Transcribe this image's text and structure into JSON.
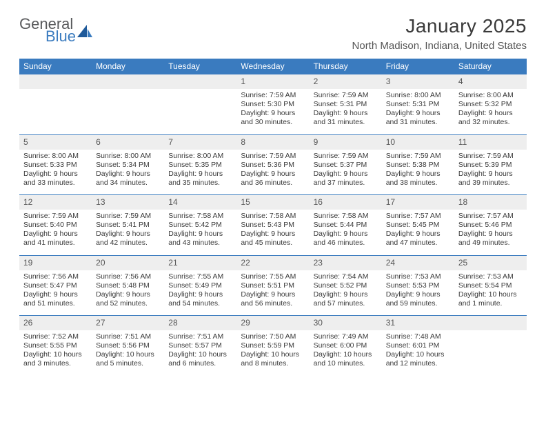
{
  "brand": {
    "part1": "General",
    "part2": "Blue"
  },
  "title": "January 2025",
  "location": "North Madison, Indiana, United States",
  "colors": {
    "header_bg": "#3a7bbf",
    "header_fg": "#ffffff",
    "daynum_bg": "#eeeeee",
    "rule": "#3a7bbf",
    "text": "#3a3a3a",
    "brand_gray": "#58595b",
    "brand_blue": "#3a7bbf"
  },
  "dow": [
    "Sunday",
    "Monday",
    "Tuesday",
    "Wednesday",
    "Thursday",
    "Friday",
    "Saturday"
  ],
  "weeks": [
    [
      null,
      null,
      null,
      {
        "n": "1",
        "t": "Sunrise: 7:59 AM\nSunset: 5:30 PM\nDaylight: 9 hours and 30 minutes."
      },
      {
        "n": "2",
        "t": "Sunrise: 7:59 AM\nSunset: 5:31 PM\nDaylight: 9 hours and 31 minutes."
      },
      {
        "n": "3",
        "t": "Sunrise: 8:00 AM\nSunset: 5:31 PM\nDaylight: 9 hours and 31 minutes."
      },
      {
        "n": "4",
        "t": "Sunrise: 8:00 AM\nSunset: 5:32 PM\nDaylight: 9 hours and 32 minutes."
      }
    ],
    [
      {
        "n": "5",
        "t": "Sunrise: 8:00 AM\nSunset: 5:33 PM\nDaylight: 9 hours and 33 minutes."
      },
      {
        "n": "6",
        "t": "Sunrise: 8:00 AM\nSunset: 5:34 PM\nDaylight: 9 hours and 34 minutes."
      },
      {
        "n": "7",
        "t": "Sunrise: 8:00 AM\nSunset: 5:35 PM\nDaylight: 9 hours and 35 minutes."
      },
      {
        "n": "8",
        "t": "Sunrise: 7:59 AM\nSunset: 5:36 PM\nDaylight: 9 hours and 36 minutes."
      },
      {
        "n": "9",
        "t": "Sunrise: 7:59 AM\nSunset: 5:37 PM\nDaylight: 9 hours and 37 minutes."
      },
      {
        "n": "10",
        "t": "Sunrise: 7:59 AM\nSunset: 5:38 PM\nDaylight: 9 hours and 38 minutes."
      },
      {
        "n": "11",
        "t": "Sunrise: 7:59 AM\nSunset: 5:39 PM\nDaylight: 9 hours and 39 minutes."
      }
    ],
    [
      {
        "n": "12",
        "t": "Sunrise: 7:59 AM\nSunset: 5:40 PM\nDaylight: 9 hours and 41 minutes."
      },
      {
        "n": "13",
        "t": "Sunrise: 7:59 AM\nSunset: 5:41 PM\nDaylight: 9 hours and 42 minutes."
      },
      {
        "n": "14",
        "t": "Sunrise: 7:58 AM\nSunset: 5:42 PM\nDaylight: 9 hours and 43 minutes."
      },
      {
        "n": "15",
        "t": "Sunrise: 7:58 AM\nSunset: 5:43 PM\nDaylight: 9 hours and 45 minutes."
      },
      {
        "n": "16",
        "t": "Sunrise: 7:58 AM\nSunset: 5:44 PM\nDaylight: 9 hours and 46 minutes."
      },
      {
        "n": "17",
        "t": "Sunrise: 7:57 AM\nSunset: 5:45 PM\nDaylight: 9 hours and 47 minutes."
      },
      {
        "n": "18",
        "t": "Sunrise: 7:57 AM\nSunset: 5:46 PM\nDaylight: 9 hours and 49 minutes."
      }
    ],
    [
      {
        "n": "19",
        "t": "Sunrise: 7:56 AM\nSunset: 5:47 PM\nDaylight: 9 hours and 51 minutes."
      },
      {
        "n": "20",
        "t": "Sunrise: 7:56 AM\nSunset: 5:48 PM\nDaylight: 9 hours and 52 minutes."
      },
      {
        "n": "21",
        "t": "Sunrise: 7:55 AM\nSunset: 5:49 PM\nDaylight: 9 hours and 54 minutes."
      },
      {
        "n": "22",
        "t": "Sunrise: 7:55 AM\nSunset: 5:51 PM\nDaylight: 9 hours and 56 minutes."
      },
      {
        "n": "23",
        "t": "Sunrise: 7:54 AM\nSunset: 5:52 PM\nDaylight: 9 hours and 57 minutes."
      },
      {
        "n": "24",
        "t": "Sunrise: 7:53 AM\nSunset: 5:53 PM\nDaylight: 9 hours and 59 minutes."
      },
      {
        "n": "25",
        "t": "Sunrise: 7:53 AM\nSunset: 5:54 PM\nDaylight: 10 hours and 1 minute."
      }
    ],
    [
      {
        "n": "26",
        "t": "Sunrise: 7:52 AM\nSunset: 5:55 PM\nDaylight: 10 hours and 3 minutes."
      },
      {
        "n": "27",
        "t": "Sunrise: 7:51 AM\nSunset: 5:56 PM\nDaylight: 10 hours and 5 minutes."
      },
      {
        "n": "28",
        "t": "Sunrise: 7:51 AM\nSunset: 5:57 PM\nDaylight: 10 hours and 6 minutes."
      },
      {
        "n": "29",
        "t": "Sunrise: 7:50 AM\nSunset: 5:59 PM\nDaylight: 10 hours and 8 minutes."
      },
      {
        "n": "30",
        "t": "Sunrise: 7:49 AM\nSunset: 6:00 PM\nDaylight: 10 hours and 10 minutes."
      },
      {
        "n": "31",
        "t": "Sunrise: 7:48 AM\nSunset: 6:01 PM\nDaylight: 10 hours and 12 minutes."
      },
      null
    ]
  ]
}
